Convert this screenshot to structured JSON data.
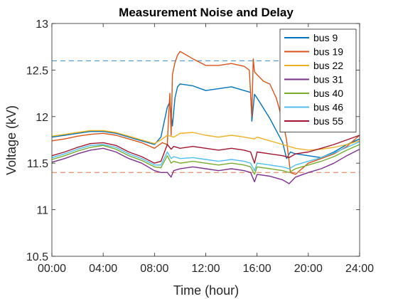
{
  "chart_data": {
    "type": "line",
    "title": "Measurement Noise and Delay",
    "xlabel": "Time (hour)",
    "ylabel": "Voltage (kV)",
    "xlim": [
      0,
      24
    ],
    "ylim": [
      10.5,
      13
    ],
    "xticks": [
      0,
      4,
      8,
      12,
      16,
      20,
      24
    ],
    "xtick_labels": [
      "00:00",
      "04:00",
      "08:00",
      "12:00",
      "16:00",
      "20:00",
      "24:00"
    ],
    "yticks": [
      10.5,
      11,
      11.5,
      12,
      12.5,
      13
    ],
    "ytick_labels": [
      "10.5",
      "11",
      "11.5",
      "12",
      "12.5",
      "13"
    ],
    "grid": false,
    "legend_position": "top-right",
    "reference_lines": [
      {
        "y": 12.6,
        "color": "#0072BD",
        "style": "dashed"
      },
      {
        "y": 11.4,
        "color": "#D95319",
        "style": "dashed"
      }
    ],
    "series": [
      {
        "name": "bus 9",
        "color": "#0072BD",
        "x": [
          0,
          1,
          2,
          3,
          4,
          5,
          6,
          7,
          8,
          8.5,
          9,
          9.2,
          9.4,
          9.6,
          9.8,
          10,
          11,
          12,
          13,
          14,
          15,
          15.5,
          15.6,
          15.8,
          16,
          17,
          18,
          18.3,
          18.6,
          19,
          20,
          21,
          22,
          23,
          24
        ],
        "y": [
          11.78,
          11.8,
          11.82,
          11.84,
          11.84,
          11.82,
          11.78,
          11.74,
          11.7,
          11.78,
          12.1,
          12.16,
          11.9,
          12.2,
          12.32,
          12.35,
          12.33,
          12.28,
          12.3,
          12.32,
          12.28,
          12.26,
          11.95,
          12.24,
          12.2,
          11.98,
          11.72,
          11.55,
          11.62,
          11.6,
          11.58,
          11.56,
          11.62,
          11.7,
          11.76
        ]
      },
      {
        "name": "bus 19",
        "color": "#D95319",
        "x": [
          0,
          1,
          2,
          3,
          4,
          5,
          6,
          7,
          8,
          8.6,
          9,
          9.1,
          9.2,
          9.3,
          9.4,
          9.6,
          9.8,
          10,
          11,
          12,
          13,
          14,
          15,
          15.4,
          15.6,
          15.7,
          15.8,
          16,
          16.5,
          17,
          17.5,
          18,
          18.3,
          18.6,
          19,
          20,
          21,
          22,
          23,
          24
        ],
        "y": [
          11.74,
          11.76,
          11.79,
          11.81,
          11.82,
          11.8,
          11.76,
          11.72,
          11.66,
          11.72,
          11.7,
          12.0,
          12.25,
          11.8,
          12.45,
          12.58,
          12.66,
          12.7,
          12.62,
          12.55,
          12.55,
          12.57,
          12.54,
          12.5,
          12.0,
          12.62,
          12.48,
          12.45,
          12.38,
          12.35,
          12.2,
          11.95,
          11.75,
          11.4,
          11.38,
          11.5,
          11.55,
          11.6,
          11.68,
          11.8
        ]
      },
      {
        "name": "bus 22",
        "color": "#EDB120",
        "x": [
          0,
          1,
          2,
          3,
          4,
          5,
          6,
          7,
          8,
          8.5,
          9,
          9.5,
          10,
          11,
          12,
          13,
          14,
          15,
          15.8,
          16,
          17,
          18,
          19,
          20,
          21,
          22,
          23,
          24
        ],
        "y": [
          11.79,
          11.81,
          11.83,
          11.85,
          11.85,
          11.83,
          11.79,
          11.75,
          11.71,
          11.75,
          11.8,
          11.78,
          11.82,
          11.83,
          11.8,
          11.78,
          11.8,
          11.78,
          11.76,
          11.78,
          11.74,
          11.7,
          11.66,
          11.64,
          11.65,
          11.67,
          11.7,
          11.74
        ]
      },
      {
        "name": "bus 31",
        "color": "#7E2F8E",
        "x": [
          0,
          1,
          2,
          3,
          4,
          5,
          6,
          7,
          8,
          8.5,
          9,
          9.3,
          9.5,
          10,
          11,
          12,
          13,
          14,
          15,
          15.5,
          15.8,
          16,
          17,
          18,
          18.5,
          19,
          20,
          21,
          22,
          23,
          24
        ],
        "y": [
          11.51,
          11.55,
          11.6,
          11.64,
          11.66,
          11.62,
          11.55,
          11.5,
          11.42,
          11.4,
          11.4,
          11.35,
          11.42,
          11.44,
          11.46,
          11.44,
          11.42,
          11.44,
          11.42,
          11.4,
          11.3,
          11.38,
          11.36,
          11.32,
          11.28,
          11.35,
          11.4,
          11.44,
          11.5,
          11.58,
          11.65
        ]
      },
      {
        "name": "bus 40",
        "color": "#77AC30",
        "x": [
          0,
          1,
          2,
          3,
          4,
          5,
          6,
          7,
          8,
          8.5,
          9,
          9.3,
          9.5,
          10,
          11,
          12,
          13,
          14,
          15,
          15.5,
          15.8,
          16,
          17,
          18,
          18.5,
          19,
          20,
          21,
          22,
          23,
          24
        ],
        "y": [
          11.54,
          11.58,
          11.63,
          11.67,
          11.69,
          11.65,
          11.58,
          11.53,
          11.46,
          11.45,
          11.58,
          11.5,
          11.52,
          11.5,
          11.52,
          11.5,
          11.48,
          11.5,
          11.48,
          11.46,
          11.38,
          11.46,
          11.44,
          11.42,
          11.4,
          11.44,
          11.48,
          11.52,
          11.57,
          11.64,
          11.7
        ]
      },
      {
        "name": "bus 46",
        "color": "#4DBEEE",
        "x": [
          0,
          1,
          2,
          3,
          4,
          5,
          6,
          7,
          8,
          8.5,
          9,
          9.3,
          9.5,
          10,
          11,
          12,
          13,
          14,
          15,
          15.5,
          15.8,
          16,
          17,
          18,
          18.5,
          19,
          20,
          21,
          22,
          23,
          24
        ],
        "y": [
          11.56,
          11.6,
          11.65,
          11.69,
          11.7,
          11.67,
          11.6,
          11.55,
          11.48,
          11.48,
          11.62,
          11.55,
          11.57,
          11.55,
          11.56,
          11.54,
          11.52,
          11.54,
          11.52,
          11.5,
          11.42,
          11.5,
          11.48,
          11.46,
          11.44,
          11.48,
          11.52,
          11.56,
          11.61,
          11.67,
          11.73
        ]
      },
      {
        "name": "bus 55",
        "color": "#A2142F",
        "x": [
          0,
          1,
          2,
          3,
          4,
          5,
          6,
          7,
          8,
          8.5,
          9,
          9.3,
          9.5,
          10,
          11,
          12,
          13,
          14,
          15,
          15.5,
          15.8,
          16,
          17,
          18,
          18.5,
          19,
          20,
          21,
          22,
          23,
          24
        ],
        "y": [
          11.58,
          11.62,
          11.67,
          11.71,
          11.72,
          11.69,
          11.62,
          11.57,
          11.5,
          11.52,
          11.7,
          11.65,
          11.68,
          11.66,
          11.68,
          11.66,
          11.64,
          11.66,
          11.64,
          11.62,
          11.5,
          11.62,
          11.6,
          11.58,
          11.56,
          11.6,
          11.62,
          11.66,
          11.7,
          11.75,
          11.8
        ]
      }
    ]
  }
}
